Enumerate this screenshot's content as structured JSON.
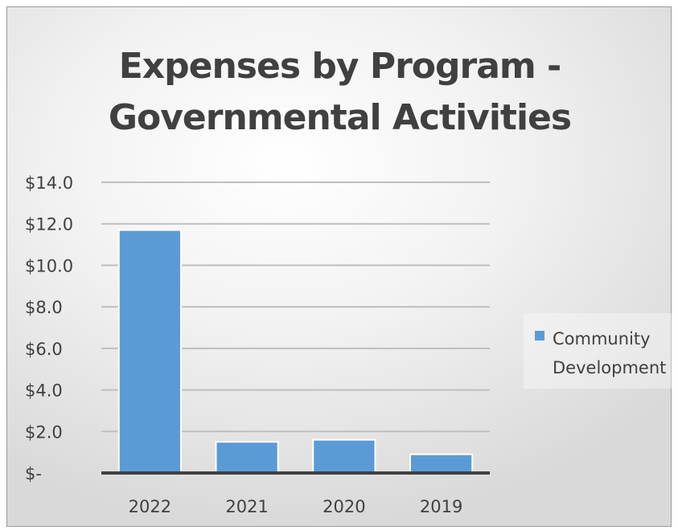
{
  "chart_data": {
    "type": "bar",
    "title_lines": [
      "Expenses by Program -",
      "Governmental Activities"
    ],
    "categories": [
      "2022",
      "2021",
      "2020",
      "2019"
    ],
    "series": [
      {
        "name": "Community Development",
        "values": [
          11.7,
          1.5,
          1.6,
          0.9
        ],
        "color": "#5b9bd5"
      }
    ],
    "y_ticks": [
      0,
      2,
      4,
      6,
      8,
      10,
      12,
      14
    ],
    "y_tick_labels": [
      "$-",
      "$2.0",
      "$4.0",
      "$6.0",
      "$8.0",
      "$10.0",
      "$12.0",
      "$14.0"
    ],
    "ylim": [
      0,
      14
    ],
    "grid": true,
    "legend_position": "right",
    "gridline_color": "#bfbfbf",
    "axis_color": "#404040"
  }
}
